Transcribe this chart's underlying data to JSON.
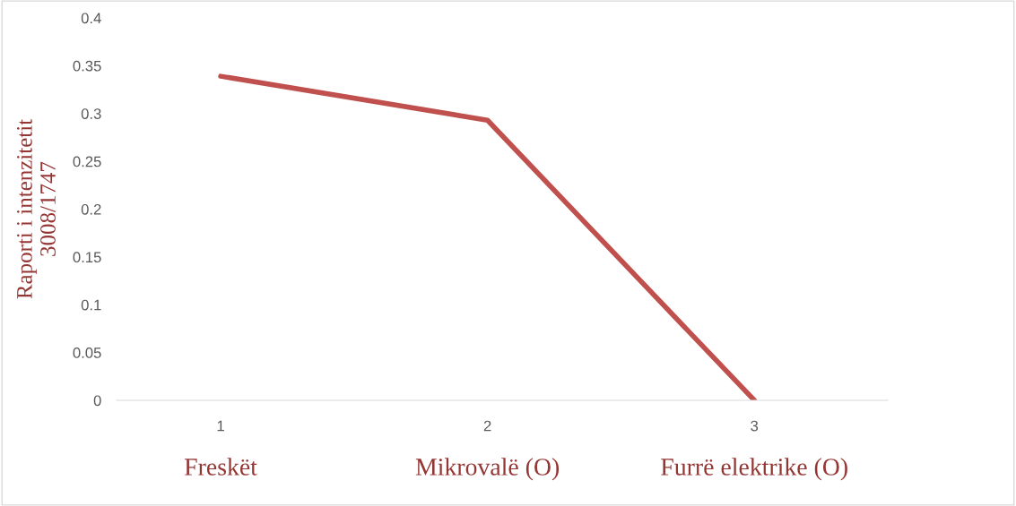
{
  "chart_data": {
    "type": "line",
    "ylabel": "Raporti i intenzitetit\n3008/1747",
    "categories": [
      "1",
      "2",
      "3"
    ],
    "series": [
      {
        "color": "#c0504d",
        "values": [
          0.339,
          0.293,
          0
        ]
      }
    ],
    "ylim": [
      0,
      0.4
    ],
    "yticks": [
      0,
      0.05,
      0.1,
      0.15,
      0.2,
      0.25,
      0.3,
      0.35,
      0.4
    ],
    "annotations": [
      "Freskët",
      "Mikrovalë (O)",
      "Furrë elektrike (O)"
    ],
    "grid": false,
    "legend": false,
    "marker": "none",
    "line_style": "solid"
  }
}
